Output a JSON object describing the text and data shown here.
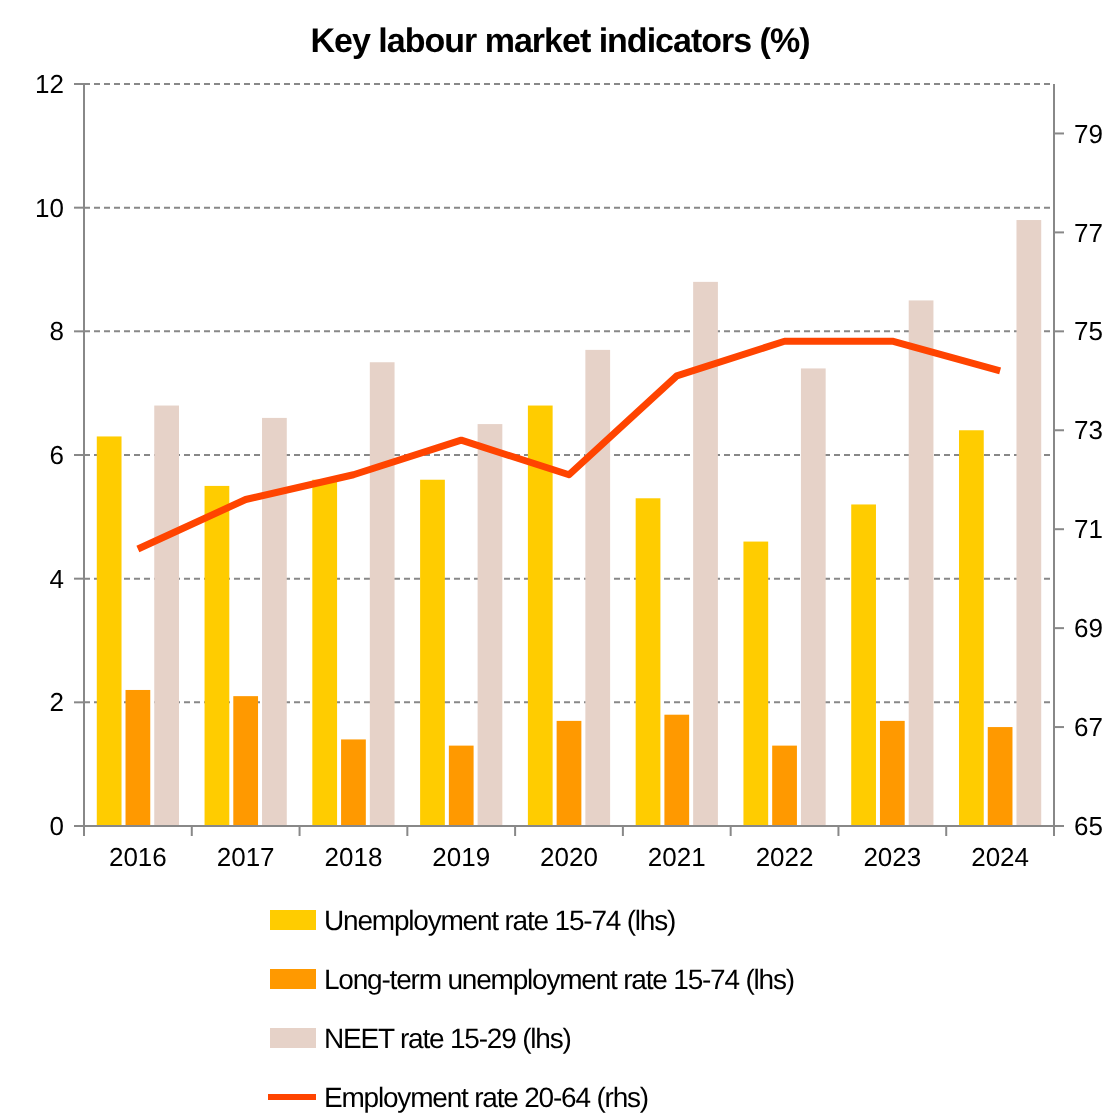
{
  "chart_data": {
    "type": "bar",
    "title": "Key labour market indicators (%)",
    "categories": [
      "2016",
      "2017",
      "2018",
      "2019",
      "2020",
      "2021",
      "2022",
      "2023",
      "2024"
    ],
    "series": [
      {
        "name": "Unemployment rate 15-74 (lhs)",
        "color": "#ffcc00",
        "values": [
          6.3,
          5.5,
          5.6,
          5.6,
          6.8,
          5.3,
          4.6,
          5.2,
          6.4
        ]
      },
      {
        "name": "Long-term unemployment rate 15-74 (lhs)",
        "color": "#ff9900",
        "values": [
          2.2,
          2.1,
          1.4,
          1.3,
          1.7,
          1.8,
          1.3,
          1.7,
          1.6
        ]
      },
      {
        "name": "NEET rate 15-29 (lhs)",
        "color": "#e6d2c8",
        "values": [
          6.8,
          6.6,
          7.5,
          6.5,
          7.7,
          8.8,
          7.4,
          8.5,
          9.8
        ]
      },
      {
        "name": "Employment rate 20-64 (rhs)",
        "type": "line",
        "axis": "y2",
        "color": "#ff4400",
        "values": [
          70.6,
          71.6,
          72.1,
          72.8,
          72.1,
          74.1,
          74.8,
          74.8,
          74.2
        ]
      }
    ],
    "ylim": [
      0,
      12
    ],
    "yticks": [
      0,
      2,
      4,
      6,
      8,
      10,
      12
    ],
    "y2lim": [
      65,
      80
    ],
    "y2ticks": [
      65,
      67,
      69,
      71,
      73,
      75,
      77,
      79
    ],
    "grid": "y",
    "legend": "bottom",
    "marker": "none"
  }
}
